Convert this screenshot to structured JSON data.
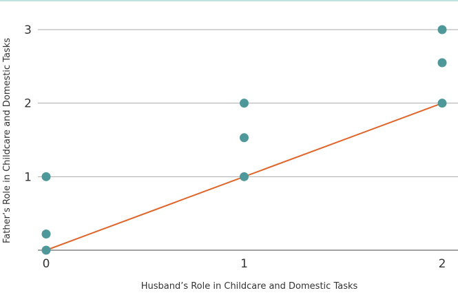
{
  "chart_data": {
    "type": "scatter",
    "xlabel": "Husband’s Role in Childcare and Domestic Tasks",
    "ylabel": "Father’s Role in Childcare and Domestic Tasks",
    "xlim": [
      0,
      2
    ],
    "ylim": [
      0,
      3
    ],
    "x_ticks": [
      0,
      1,
      2
    ],
    "y_ticks": [
      1,
      2,
      3
    ],
    "grid": true,
    "legend": "none",
    "points": [
      {
        "x": 0,
        "y": 0
      },
      {
        "x": 0,
        "y": 0.22
      },
      {
        "x": 0,
        "y": 1
      },
      {
        "x": 1,
        "y": 1
      },
      {
        "x": 1,
        "y": 1.53
      },
      {
        "x": 1,
        "y": 2
      },
      {
        "x": 2,
        "y": 2
      },
      {
        "x": 2,
        "y": 2.55
      },
      {
        "x": 2,
        "y": 3
      }
    ],
    "line": [
      {
        "x": 0,
        "y": 0
      },
      {
        "x": 2,
        "y": 2
      }
    ],
    "colors": {
      "points": "#4e9899",
      "line": "#e0652a",
      "grid": "#a9a9a9",
      "axis": "#444444",
      "top_rule": "#bfe3e2",
      "text": "#333333"
    }
  }
}
